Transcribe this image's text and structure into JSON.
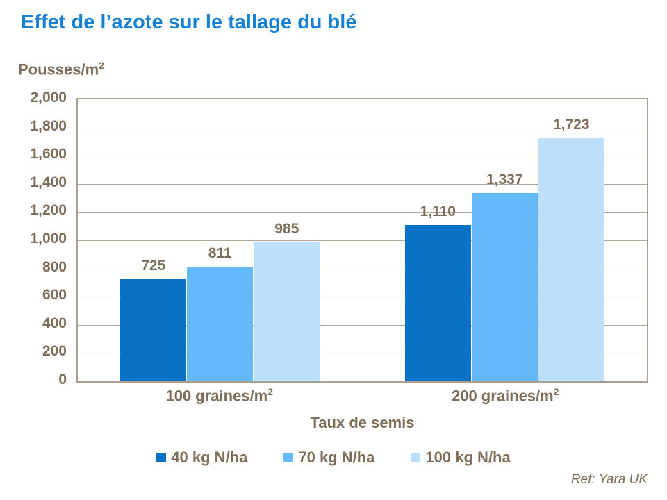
{
  "title": "Effet de l’azote sur le tallage du blé",
  "y_axis_title": {
    "text": "Pousses/m",
    "sup": "2"
  },
  "x_axis_title": "Taux de semis",
  "ref_note": "Ref: Yara UK",
  "colors": {
    "title_blue": "#1680d2",
    "text_taupe": "#7e6d58",
    "plot_border": "#a89e92",
    "gridline": "#b2a698"
  },
  "chart_data": {
    "type": "bar",
    "title": "Effet de l’azote sur le tallage du blé",
    "xlabel": "Taux de semis",
    "ylabel": "Pousses/m2",
    "ylim": [
      0,
      2000
    ],
    "ytick_step": 200,
    "yticks": [
      {
        "value": 0,
        "label": "0"
      },
      {
        "value": 200,
        "label": "200"
      },
      {
        "value": 400,
        "label": "400"
      },
      {
        "value": 600,
        "label": "600"
      },
      {
        "value": 800,
        "label": "800"
      },
      {
        "value": 1000,
        "label": "1,000"
      },
      {
        "value": 1200,
        "label": "1,200"
      },
      {
        "value": 1400,
        "label": "1,400"
      },
      {
        "value": 1600,
        "label": "1,600"
      },
      {
        "value": 1800,
        "label": "1,800"
      },
      {
        "value": 2000,
        "label": "2,000"
      }
    ],
    "grid": true,
    "legend_position": "bottom",
    "categories": [
      {
        "text": "100 graines/m",
        "sup": "2"
      },
      {
        "text": "200 graines/m",
        "sup": "2"
      }
    ],
    "series": [
      {
        "name": "40 kg N/ha",
        "color": "#0a72c4",
        "values": [
          725,
          1110
        ],
        "labels": [
          "725",
          "1,110"
        ]
      },
      {
        "name": "70 kg N/ha",
        "color": "#64b9fa",
        "values": [
          811,
          1337
        ],
        "labels": [
          "811",
          "1,337"
        ]
      },
      {
        "name": "100 kg N/ha",
        "color": "#bcdffc",
        "values": [
          985,
          1723
        ],
        "labels": [
          "985",
          "1,723"
        ]
      }
    ]
  }
}
